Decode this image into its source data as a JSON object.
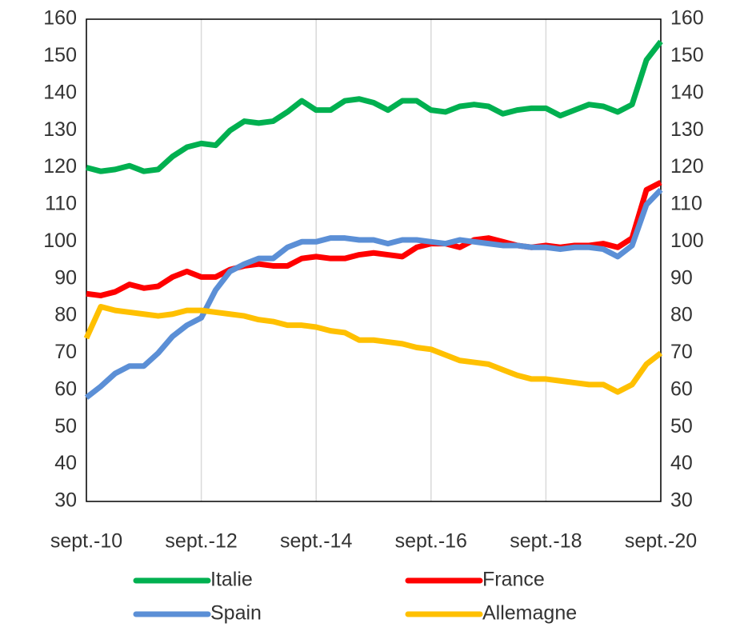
{
  "chart_data": {
    "type": "line",
    "categories": [
      "sept.-10",
      null,
      null,
      null,
      null,
      null,
      null,
      null,
      "sept.-12",
      null,
      null,
      null,
      null,
      null,
      null,
      null,
      "sept.-14",
      null,
      null,
      null,
      null,
      null,
      null,
      null,
      "sept.-16",
      null,
      null,
      null,
      null,
      null,
      null,
      null,
      "sept.-18",
      null,
      null,
      null,
      null,
      null,
      null,
      null,
      "sept.-20"
    ],
    "series": [
      {
        "name": "Italie",
        "color": "#00b050",
        "values": [
          120,
          119,
          119.5,
          120.5,
          119,
          119.5,
          123,
          125.5,
          126.5,
          126,
          130,
          132.5,
          132,
          132.5,
          135,
          138,
          135.5,
          135.5,
          138,
          138.5,
          137.5,
          135.5,
          138,
          138,
          135.5,
          135,
          136.5,
          137,
          136.5,
          134.5,
          135.5,
          136,
          136,
          134,
          135.5,
          137,
          136.5,
          135,
          137,
          149,
          154
        ]
      },
      {
        "name": "France",
        "color": "#ff0000",
        "values": [
          86,
          85.5,
          86.5,
          88.5,
          87.5,
          88,
          90.5,
          92,
          90.5,
          90.5,
          92.5,
          93.5,
          94,
          93.5,
          93.5,
          95.5,
          96,
          95.5,
          95.5,
          96.5,
          97,
          96.5,
          96,
          98.5,
          99.5,
          99.5,
          98.5,
          100.5,
          101,
          100,
          99,
          98.5,
          99,
          98.5,
          99,
          99,
          99.5,
          98.5,
          101,
          114,
          116
        ]
      },
      {
        "name": "Spain",
        "color": "#5b8fd6",
        "values": [
          58,
          61,
          64.5,
          66.5,
          66.5,
          70,
          74.5,
          77.5,
          79.5,
          87,
          92,
          94,
          95.5,
          95.5,
          98.5,
          100,
          100,
          101,
          101,
          100.5,
          100.5,
          99.5,
          100.5,
          100.5,
          100,
          99.5,
          100.5,
          100,
          99.5,
          99,
          99,
          98.5,
          98.5,
          98,
          98.5,
          98.5,
          98,
          96,
          99,
          110,
          114
        ]
      },
      {
        "name": "Allemagne",
        "color": "#ffc000",
        "values": [
          74,
          82.5,
          81.5,
          81,
          80.5,
          80,
          80.5,
          81.5,
          81.5,
          81,
          80.5,
          80,
          79,
          78.5,
          77.5,
          77.5,
          77,
          76,
          75.5,
          73.5,
          73.5,
          73,
          72.5,
          71.5,
          71,
          69.5,
          68,
          67.5,
          67,
          65.5,
          64,
          63,
          63,
          62.5,
          62,
          61.5,
          61.5,
          59.5,
          61.5,
          67,
          70
        ]
      }
    ],
    "ylim": [
      30,
      160
    ],
    "yticks": [
      30,
      40,
      50,
      60,
      70,
      80,
      90,
      100,
      110,
      120,
      130,
      140,
      150,
      160
    ],
    "y2lim": [
      30,
      160
    ],
    "y2ticks": [
      30,
      40,
      50,
      60,
      70,
      80,
      90,
      100,
      110,
      120,
      130,
      140,
      150,
      160
    ],
    "grid": "x"
  }
}
